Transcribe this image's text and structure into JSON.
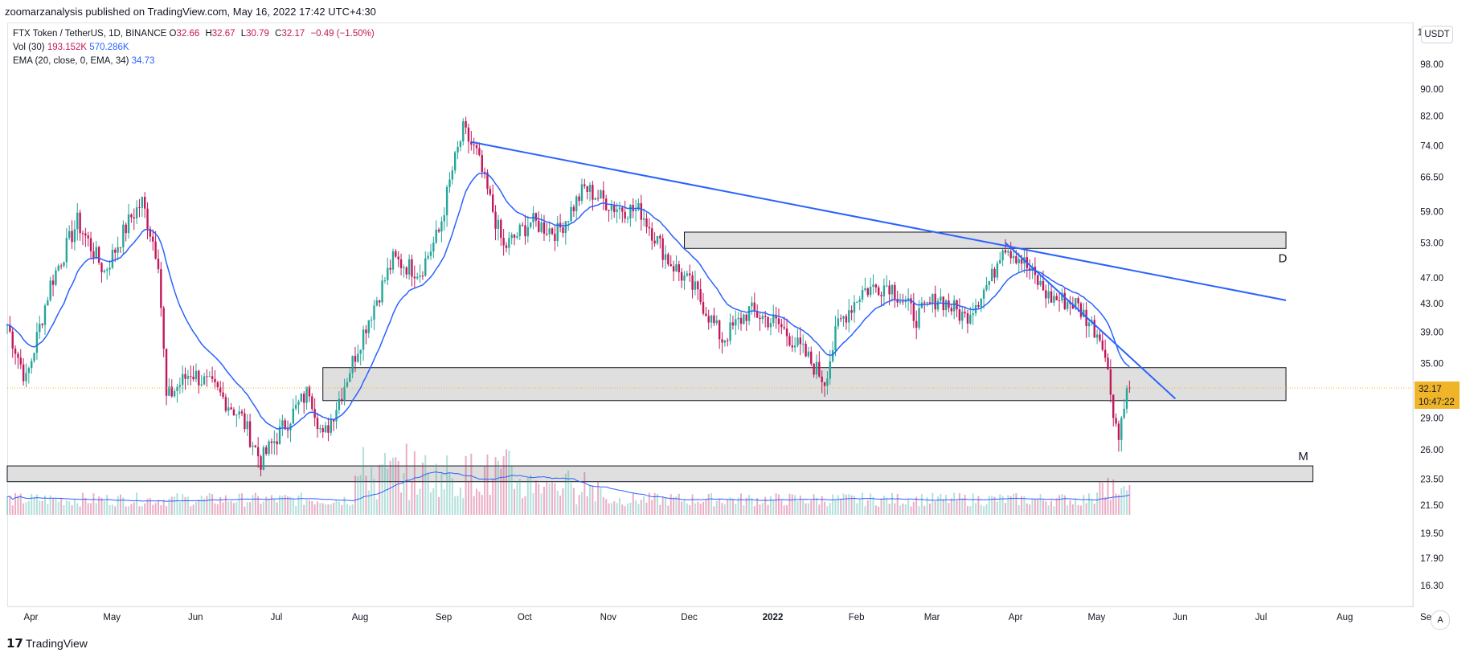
{
  "header": {
    "published_by": "zoomarzanalysis published on TradingView.com, May 16, 2022 17:42 UTC+4:30"
  },
  "legend": {
    "symbol": "FTX Token / TetherUS, 1D, BINANCE",
    "open_label": "O",
    "open": "32.66",
    "high_label": "H",
    "high": "32.67",
    "low_label": "L",
    "low": "30.79",
    "close_label": "C",
    "close": "32.17",
    "change": "−0.49 (−1.50%)",
    "vol_label": "Vol (30)",
    "vol_value": "193.152K",
    "vol_ma": "570.286K",
    "ema_label": "EMA (20, close, 0, EMA, 34)",
    "ema_value": "34.73"
  },
  "currency": "USDT",
  "price_tag": {
    "price": "32.17",
    "countdown": "10:47:22"
  },
  "auto_button": "A",
  "footer": {
    "logo": "𝟭𝟳",
    "brand": "TradingView"
  },
  "colors": {
    "up": "#26a69a",
    "down": "#c2185b",
    "line": "#2962ff",
    "zone": "#d9d9d9",
    "last": "#f0b429"
  },
  "chart_data": {
    "type": "candlestick",
    "scale": "log",
    "title": "FTX Token / TetherUS, 1D, BINANCE",
    "xlabel": "",
    "ylabel": "",
    "ylim": [
      16.3,
      100
    ],
    "y_ticks": [
      "98.00",
      "90.00",
      "82.00",
      "74.00",
      "66.50",
      "59.00",
      "53.00",
      "47.00",
      "43.00",
      "39.00",
      "35.00",
      "29.00",
      "26.00",
      "23.50",
      "21.50",
      "19.50",
      "17.90",
      "16.30"
    ],
    "last_price_tick": "32.17",
    "x_ticks": [
      "Apr",
      "May",
      "Jun",
      "Jul",
      "Aug",
      "Sep",
      "Oct",
      "Nov",
      "Dec",
      "2022",
      "Feb",
      "Mar",
      "Apr",
      "May",
      "Jun",
      "Jul",
      "Aug",
      "Sep"
    ],
    "x_range": [
      "2021-03-25",
      "2022-09-30"
    ],
    "close_path": [
      [
        "2021-03-25",
        40
      ],
      [
        "2021-04-01",
        33
      ],
      [
        "2021-04-10",
        46
      ],
      [
        "2021-04-20",
        57
      ],
      [
        "2021-04-30",
        48
      ],
      [
        "2021-05-10",
        58
      ],
      [
        "2021-05-14",
        61
      ],
      [
        "2021-05-20",
        50
      ],
      [
        "2021-05-23",
        31
      ],
      [
        "2021-06-01",
        34
      ],
      [
        "2021-06-10",
        32
      ],
      [
        "2021-06-20",
        29
      ],
      [
        "2021-06-27",
        25
      ],
      [
        "2021-07-05",
        28
      ],
      [
        "2021-07-15",
        32
      ],
      [
        "2021-07-20",
        27
      ],
      [
        "2021-07-26",
        31
      ],
      [
        "2021-08-05",
        40
      ],
      [
        "2021-08-15",
        50
      ],
      [
        "2021-08-25",
        48
      ],
      [
        "2021-09-01",
        55
      ],
      [
        "2021-09-06",
        68
      ],
      [
        "2021-09-10",
        78
      ],
      [
        "2021-09-15",
        72
      ],
      [
        "2021-09-25",
        52
      ],
      [
        "2021-10-05",
        57
      ],
      [
        "2021-10-15",
        55
      ],
      [
        "2021-10-25",
        64
      ],
      [
        "2021-11-05",
        60
      ],
      [
        "2021-11-15",
        59
      ],
      [
        "2021-11-25",
        50
      ],
      [
        "2021-12-05",
        45
      ],
      [
        "2021-12-15",
        38
      ],
      [
        "2021-12-25",
        42
      ],
      [
        "2022-01-05",
        40
      ],
      [
        "2022-01-15",
        36
      ],
      [
        "2022-01-22",
        33
      ],
      [
        "2022-01-27",
        40
      ],
      [
        "2022-02-05",
        45
      ],
      [
        "2022-02-15",
        46
      ],
      [
        "2022-02-25",
        41
      ],
      [
        "2022-03-05",
        44
      ],
      [
        "2022-03-15",
        41
      ],
      [
        "2022-03-25",
        47
      ],
      [
        "2022-03-29",
        53
      ],
      [
        "2022-04-05",
        50
      ],
      [
        "2022-04-15",
        44
      ],
      [
        "2022-04-25",
        43
      ],
      [
        "2022-05-05",
        38
      ],
      [
        "2022-05-09",
        30
      ],
      [
        "2022-05-11",
        27
      ],
      [
        "2022-05-13",
        31
      ],
      [
        "2022-05-15",
        32.17
      ]
    ],
    "ema_20": {
      "name": "EMA (20, close, 0, EMA, 34)",
      "last": 34.73
    },
    "volume": {
      "name": "Vol (30)",
      "last": "193.152K",
      "ma": "570.286K"
    },
    "annotations": [
      {
        "type": "trendline",
        "from": [
          "2021-09-13",
          75
        ],
        "to": [
          "2022-07-12",
          43.5
        ]
      },
      {
        "type": "trendline",
        "from": [
          "2022-03-30",
          53
        ],
        "to": [
          "2022-06-01",
          31
        ]
      },
      {
        "type": "zone",
        "from": "2021-12-01",
        "to": "2022-07-12",
        "low": 52,
        "high": 55,
        "label": "D"
      },
      {
        "type": "zone",
        "from": "2021-07-20",
        "to": "2022-07-12",
        "low": 30.8,
        "high": 34.5,
        "label": ""
      },
      {
        "type": "zone",
        "from": "2021-03-25",
        "to": "2022-07-22",
        "low": 23.3,
        "high": 24.6,
        "label": "M"
      }
    ]
  }
}
